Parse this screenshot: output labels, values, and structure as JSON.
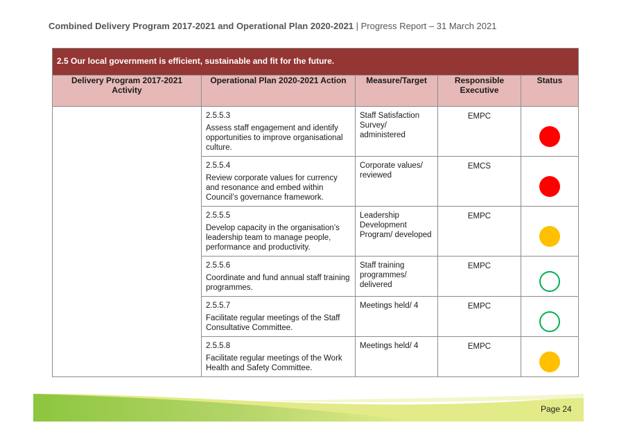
{
  "header": {
    "title_bold": "Combined Delivery Program 2017-2021 and Operational Plan 2020-2021",
    "separator": " | ",
    "subtitle": "Progress Report – 31 March 2021"
  },
  "section": {
    "title": "2.5 Our local government is efficient, sustainable and fit for the future."
  },
  "columns": {
    "activity": "Delivery Program 2017-2021 Activity",
    "action": "Operational Plan 2020-2021 Action",
    "measure": "Measure/Target",
    "executive": "Responsible Executive",
    "status": "Status"
  },
  "rows": [
    {
      "code": "2.5.5.3",
      "action": "Assess staff engagement and identify opportunities to improve organisational culture.",
      "measure": "Staff Satisfaction Survey/ administered",
      "executive": "EMPC",
      "status": "red"
    },
    {
      "code": "2.5.5.4",
      "action": "Review corporate values for currency and resonance and embed within Council’s governance framework.",
      "measure": "Corporate values/ reviewed",
      "executive": "EMCS",
      "status": "red"
    },
    {
      "code": "2.5.5.5",
      "action": "Develop capacity in the organisation’s leadership team to manage people, performance and productivity.",
      "measure": "Leadership Development Program/ developed",
      "executive": "EMPC",
      "status": "amber"
    },
    {
      "code": "2.5.5.6",
      "action": "Coordinate and fund annual staff training programmes.",
      "measure": "Staff training programmes/ delivered",
      "executive": "EMPC",
      "status": "green"
    },
    {
      "code": "2.5.5.7",
      "action": "Facilitate regular meetings of the Staff Consultative Committee.",
      "measure": "Meetings held/ 4",
      "executive": "EMPC",
      "status": "green"
    },
    {
      "code": "2.5.5.8",
      "action": "Facilitate regular meetings of the Work Health and Safety Committee.",
      "measure": "Meetings held/ 4",
      "executive": "EMPC",
      "status": "amber"
    }
  ],
  "footer": {
    "page_label": "Page 24"
  },
  "colors": {
    "section_bg": "#943634",
    "header_bg": "#e6b9b8",
    "status_red": "#ff0000",
    "status_amber": "#ffc000",
    "status_green": "#00b050"
  }
}
